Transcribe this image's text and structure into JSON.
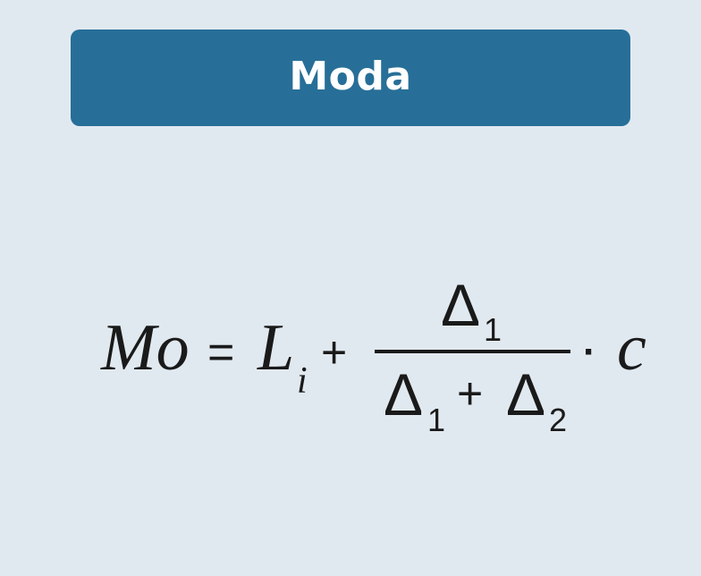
{
  "title": "Moda",
  "formula": {
    "lhs": "Mo",
    "equals": "=",
    "term_base": "L",
    "term_subscript": "i",
    "plus": "+",
    "numerator_symbol": "Δ",
    "numerator_subscript": "1",
    "denominator_symbol_1": "Δ",
    "denominator_subscript_1": "1",
    "denominator_plus": "+",
    "denominator_symbol_2": "Δ",
    "denominator_subscript_2": "2",
    "dot": "·",
    "factor": "c"
  }
}
